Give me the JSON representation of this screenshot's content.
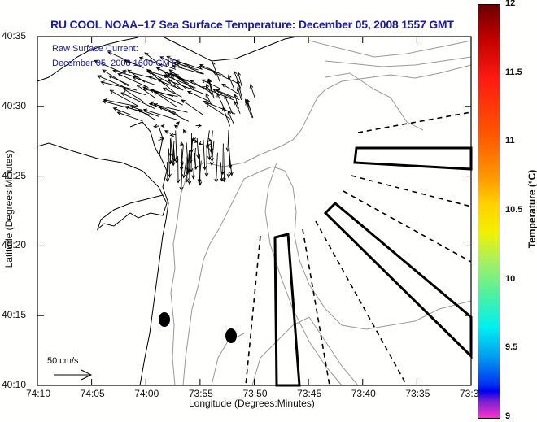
{
  "title": "RU COOL  NOAA–17  Sea Surface Temperature:  December 05, 2008 1557 GMT",
  "legend": {
    "line1": "Raw Surface Current:",
    "line2": "December 05, 2008 1600 GMT",
    "scale_label": "50 cm/s"
  },
  "axes": {
    "xlabel": "Longitude (Degrees:Minutes)",
    "ylabel": "Latitude (Degrees:Minutes)",
    "x_ticks": [
      "74:10",
      "74:05",
      "74:00",
      "73:55",
      "73:50",
      "73:45",
      "73:40",
      "73:35",
      "73:3"
    ],
    "y_ticks": [
      "40:35",
      "40:30",
      "40:25",
      "40:20",
      "40:15",
      "40:10"
    ]
  },
  "colorbar": {
    "label": "Temperature (°C)",
    "ticks": [
      "12",
      "11.5",
      "11",
      "10.5",
      "10",
      "9.5",
      "9"
    ],
    "range": [
      9,
      12
    ]
  },
  "features": {
    "sampling_stations": 2,
    "dumping_zones_boxes": 3,
    "shipping_lanes_dashed": 6
  }
}
